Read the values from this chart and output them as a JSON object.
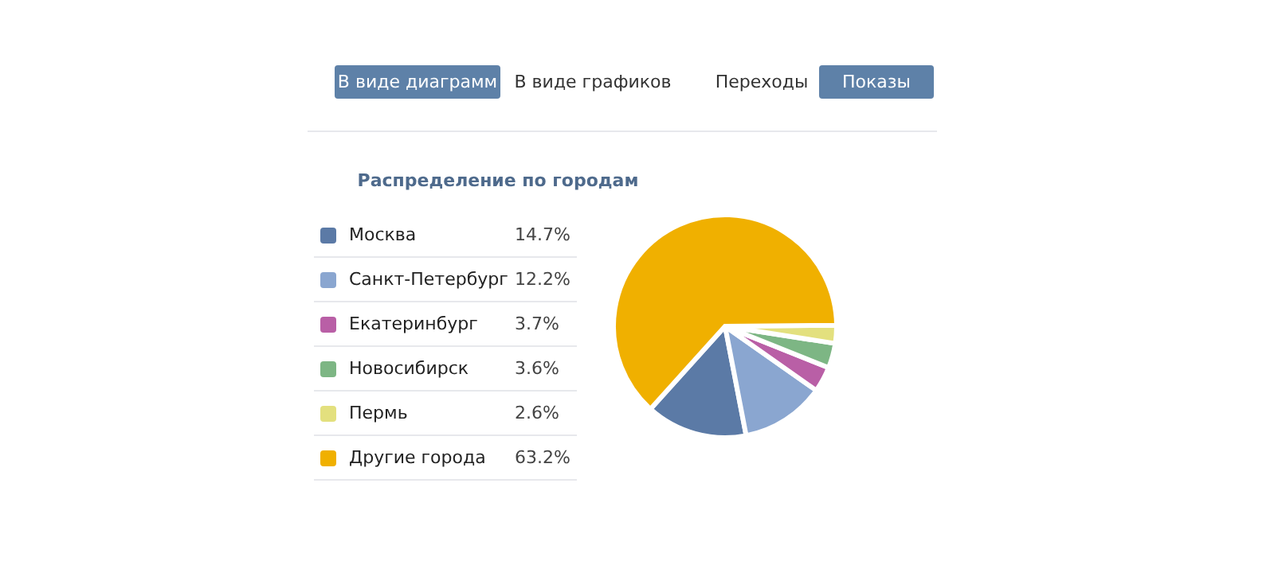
{
  "chart_data": {
    "type": "pie",
    "title": "Распределение по городам",
    "annotations": [
      "В виде диаграмм",
      "В виде графиков",
      "Переходы",
      "Показы"
    ],
    "categories": [
      "Москва",
      "Санкт-Петербург",
      "Екатеринбург",
      "Новосибирск",
      "Пермь",
      "Другие города"
    ],
    "values": [
      14.7,
      12.2,
      3.7,
      3.6,
      2.6,
      63.2
    ],
    "value_labels": [
      "14.7%",
      "12.2%",
      "3.7%",
      "3.6%",
      "2.6%",
      "63.2%"
    ],
    "colors": [
      "#5b7aa6",
      "#8aa6d0",
      "#b95fa6",
      "#7db684",
      "#e3e07e",
      "#f0b000"
    ],
    "legend": "left"
  }
}
